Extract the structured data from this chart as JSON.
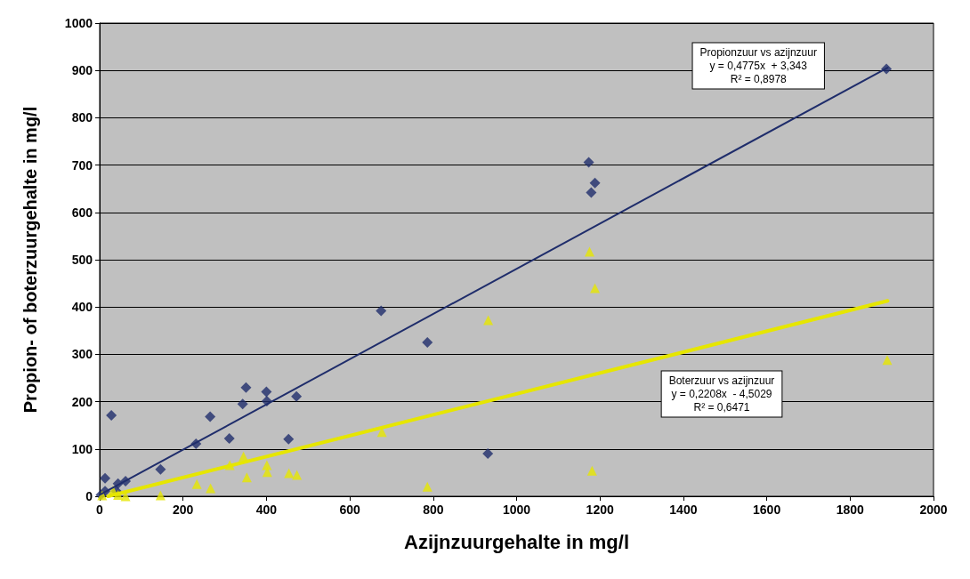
{
  "chart_data": {
    "type": "scatter",
    "xlabel": "Azijnzuurgehalte in mg/l",
    "ylabel": "Propion- of boterzuurgehalte in mg/l",
    "xlim": [
      0,
      2000
    ],
    "xticks": [
      0,
      200,
      400,
      600,
      800,
      1000,
      1200,
      1400,
      1600,
      1800,
      2000
    ],
    "ylim": [
      0,
      1000
    ],
    "yticks": [
      0,
      100,
      200,
      300,
      400,
      500,
      600,
      700,
      800,
      900,
      1000
    ],
    "grid": "y",
    "series": [
      {
        "type": "scatter",
        "marker": "diamond",
        "color": "#1f2d6b",
        "x": [
          3,
          13,
          13,
          28,
          40,
          44,
          62,
          146,
          231,
          265,
          311,
          343,
          351,
          400,
          401,
          453,
          472,
          675,
          786,
          931,
          1173,
          1179,
          1188,
          1887
        ],
        "values": [
          3,
          11,
          38,
          171,
          11,
          27,
          32,
          57,
          111,
          168,
          122,
          195,
          230,
          221,
          201,
          121,
          211,
          392,
          325,
          90,
          706,
          642,
          662,
          903
        ]
      },
      {
        "type": "scatter",
        "marker": "triangle",
        "color": "#e6e600",
        "x": [
          6,
          32,
          44,
          62,
          146,
          233,
          266,
          312,
          345,
          353,
          401,
          402,
          454,
          473,
          677,
          786,
          932,
          1175,
          1181,
          1188,
          1889
        ],
        "values": [
          2,
          12,
          3,
          0,
          2,
          26,
          17,
          66,
          84,
          40,
          66,
          51,
          49,
          45,
          136,
          20,
          372,
          517,
          54,
          440,
          288
        ]
      },
      {
        "type": "line",
        "marker": "none",
        "line_style": "solid",
        "color": "#1f2d6b",
        "x": [
          0,
          1890
        ],
        "values": [
          3,
          906
        ]
      },
      {
        "type": "line",
        "marker": "none",
        "line_style": "solid",
        "color": "#e6e600",
        "x": [
          20,
          1890
        ],
        "values": [
          0,
          413
        ]
      }
    ],
    "annotations": [
      "Propionzuur vs azijnzuur\ny = 0,4775x  + 3,343\nR² = 0,8978",
      "Boterzuur vs azijnzuur\ny = 0,2208x  - 4,5029\nR² = 0,6471"
    ]
  }
}
